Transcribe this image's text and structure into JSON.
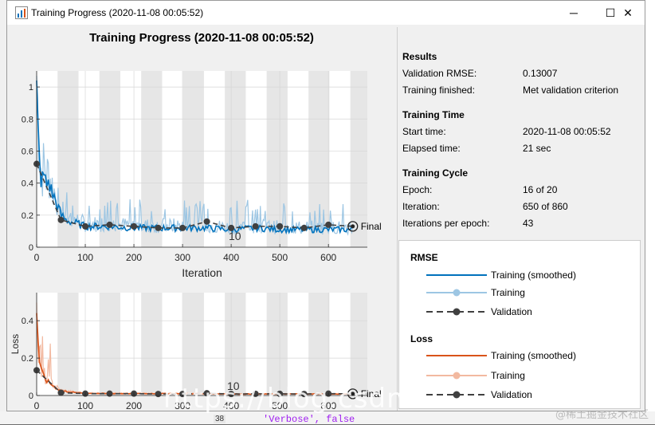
{
  "window": {
    "title": "Training Progress (2020-11-08 00:05:52)",
    "controls": {
      "minimize": "─",
      "maximize": "☐",
      "close": "✕"
    }
  },
  "plot": {
    "title": "Training Progress (2020-11-08 00:05:52)",
    "final_label": "Final",
    "overlay_label_top": "10",
    "overlay_label_bottom": "10"
  },
  "results": {
    "section_results": "Results",
    "validation_rmse_label": "Validation RMSE:",
    "validation_rmse_value": "0.13007",
    "training_finished_label": "Training finished:",
    "training_finished_value": "Met validation criterion",
    "section_time": "Training Time",
    "start_time_label": "Start time:",
    "start_time_value": "2020-11-08 00:05:52",
    "elapsed_label": "Elapsed time:",
    "elapsed_value": "21 sec",
    "section_cycle": "Training Cycle",
    "epoch_label": "Epoch:",
    "epoch_value": "16 of 20",
    "iteration_label": "Iteration:",
    "iteration_value": "650 of 860",
    "ipe_label": "Iterations per epoch:",
    "ipe_value": "43"
  },
  "legend": {
    "rmse_heading": "RMSE",
    "loss_heading": "Loss",
    "items_rmse": [
      "Training (smoothed)",
      "Training",
      "Validation"
    ],
    "items_loss": [
      "Training (smoothed)",
      "Training",
      "Validation"
    ],
    "colors": {
      "rmse_smoothed": "#0072bd",
      "rmse_training": "#9dc6e3",
      "validation": "#404040",
      "loss_smoothed": "#d95319",
      "loss_training": "#f2b9a0"
    }
  },
  "background": {
    "code_text": "'Verbose', false",
    "line_number": "38",
    "watermark": "@稀土掘金技术社区",
    "url_overlay": "https://blog.csdn"
  },
  "chart_data": [
    {
      "type": "line",
      "title": "",
      "xlabel": "Iteration",
      "ylabel": "",
      "xlim": [
        0,
        680
      ],
      "ylim": [
        0,
        1.1
      ],
      "xticks": [
        0,
        100,
        200,
        300,
        400,
        500,
        600
      ],
      "yticks": [
        0,
        0.2,
        0.4,
        0.6,
        0.8,
        1
      ],
      "epoch_boundaries": [
        0,
        43,
        86,
        129,
        172,
        215,
        258,
        301,
        344,
        387,
        430,
        473,
        516,
        559,
        602,
        645
      ],
      "series": [
        {
          "name": "Training (smoothed)",
          "x": [
            0,
            5,
            10,
            15,
            20,
            25,
            30,
            40,
            50,
            60,
            80,
            100,
            150,
            200,
            250,
            300,
            350,
            400,
            450,
            500,
            550,
            600,
            650
          ],
          "values": [
            0.95,
            0.55,
            0.4,
            0.45,
            0.38,
            0.42,
            0.35,
            0.28,
            0.2,
            0.17,
            0.15,
            0.13,
            0.13,
            0.12,
            0.12,
            0.12,
            0.12,
            0.11,
            0.12,
            0.11,
            0.11,
            0.11,
            0.11
          ]
        },
        {
          "name": "Validation",
          "x": [
            0,
            50,
            100,
            150,
            200,
            250,
            300,
            350,
            400,
            450,
            500,
            550,
            600,
            650
          ],
          "values": [
            0.52,
            0.17,
            0.13,
            0.14,
            0.13,
            0.12,
            0.12,
            0.16,
            0.12,
            0.13,
            0.13,
            0.12,
            0.14,
            0.13
          ]
        }
      ]
    },
    {
      "type": "line",
      "title": "",
      "xlabel": "Iteration",
      "ylabel": "Loss",
      "xlim": [
        0,
        680
      ],
      "ylim": [
        0,
        0.55
      ],
      "xticks": [
        0,
        100,
        200,
        300,
        400,
        500,
        600
      ],
      "yticks": [
        0,
        0.2,
        0.4
      ],
      "series": [
        {
          "name": "Training (smoothed)",
          "x": [
            0,
            5,
            10,
            15,
            20,
            30,
            40,
            50,
            80,
            100,
            150,
            200,
            300,
            400,
            500,
            600,
            650
          ],
          "values": [
            0.45,
            0.2,
            0.12,
            0.1,
            0.08,
            0.06,
            0.04,
            0.025,
            0.015,
            0.012,
            0.01,
            0.01,
            0.01,
            0.008,
            0.008,
            0.008,
            0.008
          ]
        },
        {
          "name": "Validation",
          "x": [
            0,
            50,
            100,
            150,
            200,
            250,
            300,
            350,
            400,
            450,
            500,
            550,
            600,
            650
          ],
          "values": [
            0.135,
            0.015,
            0.01,
            0.01,
            0.01,
            0.008,
            0.008,
            0.012,
            0.008,
            0.009,
            0.009,
            0.008,
            0.01,
            0.009
          ]
        }
      ]
    }
  ]
}
